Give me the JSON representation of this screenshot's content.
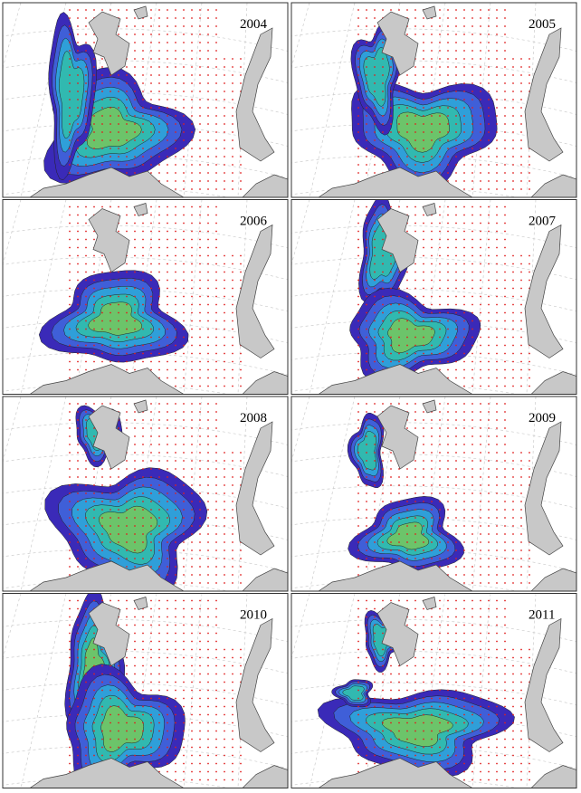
{
  "panels": [
    {
      "year": "2004"
    },
    {
      "year": "2005"
    },
    {
      "year": "2006"
    },
    {
      "year": "2007"
    },
    {
      "year": "2008"
    },
    {
      "year": "2009"
    },
    {
      "year": "2010"
    },
    {
      "year": "2011"
    }
  ]
}
